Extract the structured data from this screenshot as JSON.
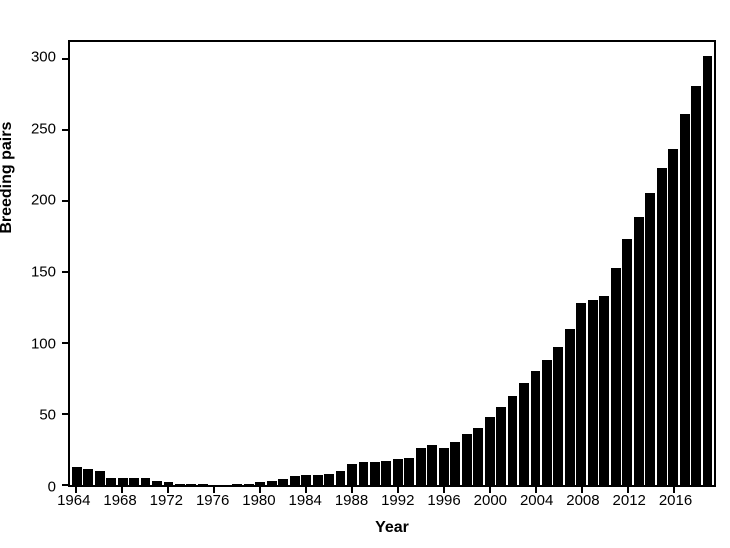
{
  "chart_data": {
    "type": "bar",
    "title": "",
    "xlabel": "Year",
    "ylabel": "Breeding pairs",
    "bar_color": "#000000",
    "background_color": "#ffffff",
    "grid": false,
    "legend": false,
    "ylim": [
      0,
      312
    ],
    "y_ticks": [
      0,
      50,
      100,
      150,
      200,
      250,
      300
    ],
    "x_tick_labels": [
      1964,
      1968,
      1972,
      1976,
      1980,
      1984,
      1988,
      1992,
      1996,
      2000,
      2004,
      2008,
      2012,
      2016
    ],
    "x": [
      1964,
      1965,
      1966,
      1967,
      1968,
      1969,
      1970,
      1971,
      1972,
      1973,
      1974,
      1975,
      1976,
      1977,
      1978,
      1979,
      1980,
      1981,
      1982,
      1983,
      1984,
      1985,
      1986,
      1987,
      1988,
      1989,
      1990,
      1991,
      1992,
      1993,
      1994,
      1995,
      1996,
      1997,
      1998,
      1999,
      2000,
      2001,
      2002,
      2003,
      2004,
      2005,
      2006,
      2007,
      2008,
      2009,
      2010,
      2011,
      2012,
      2013,
      2014,
      2015,
      2016,
      2017,
      2018,
      2019
    ],
    "values": [
      13,
      11,
      10,
      5,
      5,
      5,
      5,
      3,
      2,
      1,
      1,
      1,
      0,
      0,
      1,
      1,
      2,
      3,
      4,
      6,
      7,
      7,
      8,
      10,
      15,
      16,
      16,
      17,
      18,
      19,
      26,
      28,
      26,
      30,
      36,
      40,
      48,
      55,
      63,
      72,
      80,
      88,
      97,
      110,
      128,
      130,
      133,
      153,
      173,
      189,
      206,
      223,
      237,
      261,
      281,
      302
    ]
  }
}
